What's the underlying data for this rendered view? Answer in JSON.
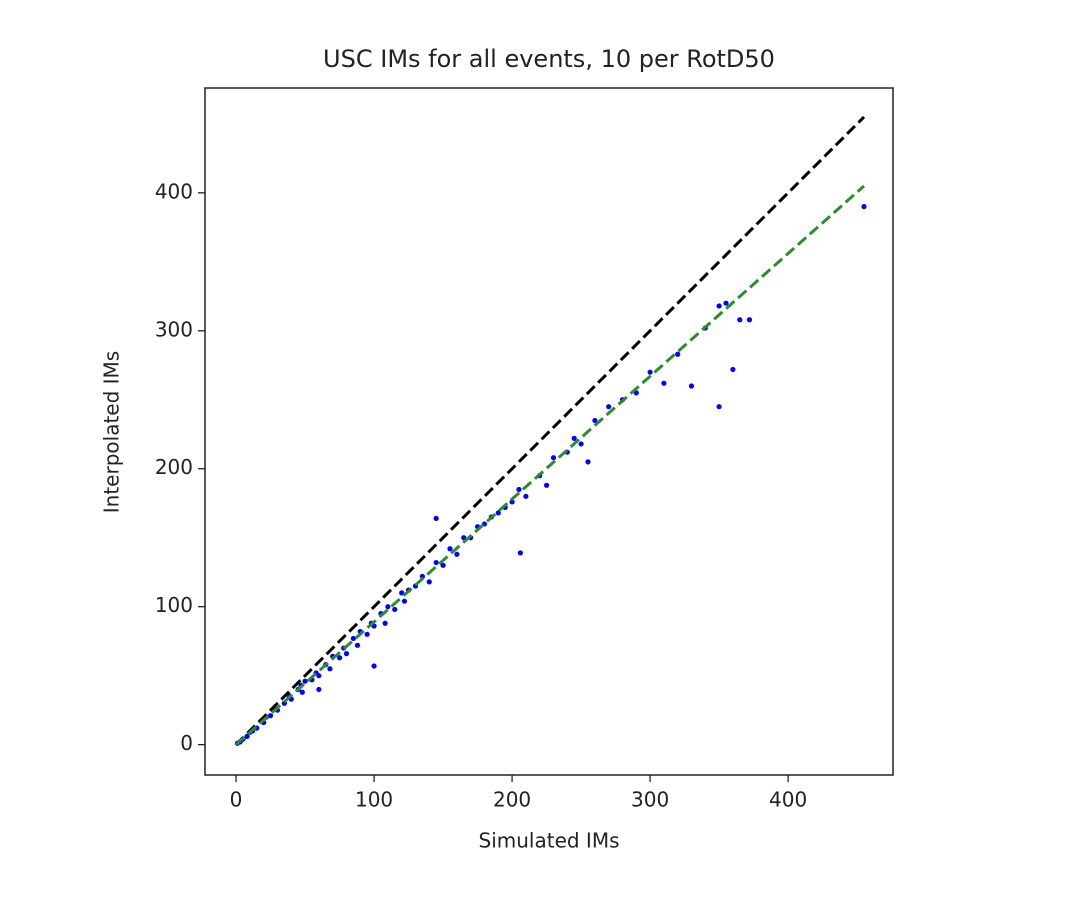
{
  "chart_data": {
    "type": "scatter",
    "title": "USC IMs for all events, 10 per RotD50",
    "x_label": "Simulated IMs",
    "y_label": "Interpolated IMs",
    "xlim": [
      -22.5,
      476
    ],
    "ylim": [
      -22,
      476
    ],
    "xticks": [
      0,
      100,
      200,
      300,
      400
    ],
    "yticks": [
      0,
      100,
      200,
      300,
      400
    ],
    "grid": false,
    "series": [
      {
        "color": "#0000ff",
        "marker": "point",
        "x": [
          1,
          3,
          5,
          8,
          10,
          12,
          15,
          18,
          20,
          22,
          25,
          28,
          30,
          35,
          38,
          40,
          45,
          47,
          48,
          50,
          55,
          58,
          60,
          60,
          65,
          68,
          70,
          75,
          78,
          80,
          85,
          88,
          90,
          95,
          98,
          100,
          100,
          105,
          108,
          110,
          115,
          120,
          122,
          125,
          130,
          135,
          140,
          145,
          145,
          150,
          155,
          160,
          165,
          170,
          175,
          180,
          185,
          190,
          195,
          200,
          205,
          206,
          210,
          220,
          225,
          230,
          240,
          245,
          250,
          255,
          260,
          270,
          280,
          290,
          300,
          310,
          320,
          330,
          340,
          350,
          350,
          355,
          360,
          365,
          372,
          455
        ],
        "values": [
          1,
          2,
          4,
          6,
          9,
          10,
          12,
          17,
          16,
          20,
          21,
          26,
          25,
          30,
          36,
          33,
          40,
          43,
          38,
          46,
          47,
          52,
          50,
          40,
          58,
          55,
          64,
          63,
          70,
          66,
          77,
          72,
          82,
          80,
          88,
          86,
          57,
          95,
          88,
          100,
          98,
          110,
          104,
          112,
          115,
          122,
          118,
          132,
          164,
          130,
          142,
          138,
          150,
          150,
          158,
          160,
          165,
          168,
          172,
          176,
          185,
          139,
          180,
          195,
          188,
          208,
          212,
          222,
          218,
          205,
          235,
          245,
          250,
          255,
          270,
          262,
          283,
          260,
          302,
          318,
          245,
          320,
          272,
          308,
          308,
          390
        ]
      },
      {
        "color": "#000000",
        "linestyle": "dashed",
        "x": [
          0,
          455
        ],
        "values": [
          0,
          455
        ]
      },
      {
        "color": "#2e8b2e",
        "linestyle": "dashed",
        "x": [
          0,
          455
        ],
        "values": [
          0,
          405
        ]
      }
    ]
  }
}
